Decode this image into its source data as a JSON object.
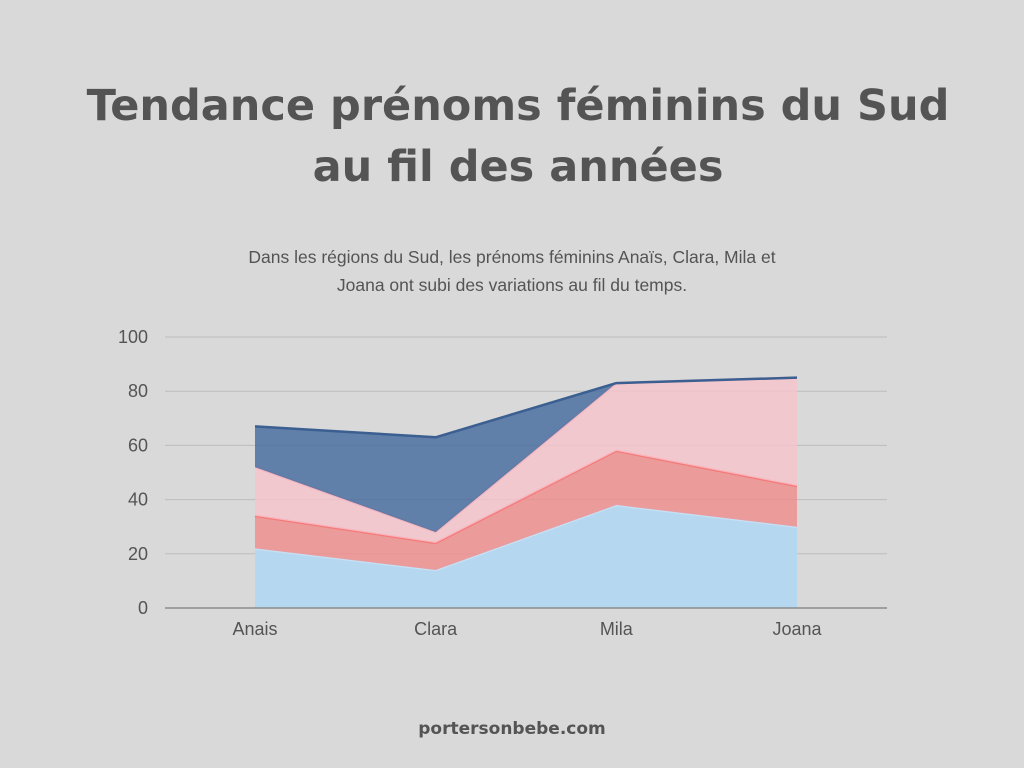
{
  "header": {
    "title_line1": "Tendance prénoms féminins du Sud",
    "title_line2": "au fil des années",
    "subtitle_line1": "Dans les régions du Sud, les prénoms féminins Anaïs, Clara, Mila et",
    "subtitle_line2": "Joana ont subi des variations au fil du temps."
  },
  "footer": {
    "source": "portersonbebe.com"
  },
  "colors": {
    "background": "#d9d9d9",
    "text": "#545454",
    "grid": "#bdbdbd",
    "axis": "#8c8c8c"
  },
  "chart_data": {
    "type": "area",
    "stacked": true,
    "categories": [
      "Anais",
      "Clara",
      "Mila",
      "Joana"
    ],
    "series": [
      {
        "values": [
          22,
          14,
          38,
          30
        ],
        "color": "#b6d7f0",
        "line": "#c7e1f4",
        "opacity": 1
      },
      {
        "values": [
          12,
          10,
          20,
          15
        ],
        "color": "#f08b8b",
        "line": "#f47a7a",
        "opacity": 0.8
      },
      {
        "values": [
          18,
          4,
          25,
          40
        ],
        "color": "#f7c3cc",
        "line": "#f4b7c1",
        "opacity": 0.8
      },
      {
        "values": [
          15,
          35,
          0,
          0
        ],
        "color": "#4a6fa0",
        "line": "#3c5f91",
        "opacity": 0.85
      }
    ],
    "ylim": [
      0,
      100
    ],
    "yticks": [
      "0",
      "20",
      "40",
      "60",
      "80",
      "100"
    ],
    "grid": true,
    "legend": "none"
  }
}
